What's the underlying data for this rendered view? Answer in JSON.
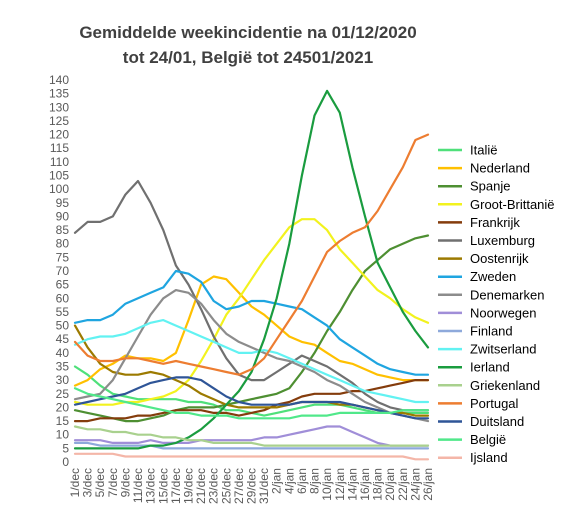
{
  "chart_data": {
    "type": "line",
    "title": [
      "Gemiddelde weekincidentie  na 01/12/2020",
      "tot 24/01, België tot 24501/2021"
    ],
    "xlabel": "",
    "ylabel": "",
    "ylim": [
      0,
      140
    ],
    "ytick_step": 5,
    "grid": false,
    "legend_position": "right",
    "x": [
      "1/dec",
      "3/dec",
      "5/dec",
      "7/dec",
      "9/dec",
      "11/dec",
      "13/dec",
      "15/dec",
      "17/dec",
      "19/dec",
      "21/dec",
      "23/dec",
      "25/dec",
      "27/dec",
      "29/dec",
      "31/dec",
      "2/jan",
      "4/jan",
      "6/jan",
      "8/jan",
      "10/jan",
      "12/jan",
      "14/jan",
      "16/jan",
      "18/jan",
      "20/jan",
      "22/jan",
      "24/jan",
      "26/jan"
    ],
    "series": [
      {
        "name": "Italië",
        "color": "#4fe07a",
        "values": [
          35,
          32,
          28,
          25,
          24,
          23,
          23,
          23,
          23,
          22,
          22,
          21,
          19,
          19,
          18,
          17,
          18,
          19,
          20,
          21,
          21,
          21,
          20,
          19,
          18,
          18,
          18,
          18,
          18
        ]
      },
      {
        "name": "Nederland",
        "color": "#ffc000",
        "values": [
          28,
          30,
          34,
          36,
          39,
          38,
          38,
          37,
          40,
          52,
          65,
          68,
          67,
          62,
          57,
          54,
          50,
          46,
          44,
          43,
          40,
          37,
          36,
          34,
          32,
          31,
          30,
          30,
          30
        ]
      },
      {
        "name": "Spanje",
        "color": "#4e8f32",
        "values": [
          19,
          18,
          17,
          16,
          15,
          15,
          16,
          17,
          19,
          20,
          20,
          20,
          21,
          22,
          23,
          24,
          25,
          27,
          33,
          40,
          48,
          55,
          63,
          70,
          74,
          78,
          80,
          82,
          83
        ]
      },
      {
        "name": "Groot-Brittanië",
        "color": "#f2f21e",
        "values": [
          22,
          21,
          21,
          21,
          22,
          22,
          23,
          24,
          26,
          30,
          37,
          45,
          54,
          60,
          67,
          74,
          80,
          86,
          89,
          89,
          85,
          78,
          73,
          68,
          63,
          60,
          56,
          53,
          51
        ]
      },
      {
        "name": "Frankrijk",
        "color": "#843c0c",
        "values": [
          15,
          15,
          16,
          16,
          16,
          17,
          17,
          18,
          19,
          19,
          19,
          18,
          18,
          17,
          18,
          19,
          21,
          22,
          24,
          25,
          25,
          25,
          26,
          26,
          27,
          28,
          29,
          30,
          30
        ]
      },
      {
        "name": "Luxemburg",
        "color": "#707070",
        "values": [
          84,
          88,
          88,
          90,
          98,
          103,
          95,
          85,
          72,
          65,
          56,
          46,
          38,
          32,
          30,
          30,
          33,
          36,
          39,
          37,
          35,
          32,
          29,
          25,
          22,
          20,
          19,
          19,
          19
        ]
      },
      {
        "name": "Oostenrijk",
        "color": "#9c7a00",
        "values": [
          50,
          42,
          36,
          33,
          32,
          32,
          33,
          32,
          30,
          28,
          25,
          23,
          21,
          20,
          20,
          20,
          20,
          21,
          22,
          22,
          22,
          21,
          21,
          20,
          19,
          18,
          18,
          17,
          17
        ]
      },
      {
        "name": "Zweden",
        "color": "#1fa5e0",
        "values": [
          51,
          52,
          52,
          54,
          58,
          60,
          62,
          64,
          70,
          69,
          66,
          59,
          56,
          57,
          59,
          59,
          58,
          57,
          56,
          53,
          50,
          45,
          42,
          39,
          36,
          34,
          33,
          32,
          32
        ]
      },
      {
        "name": "Denemarken",
        "color": "#8c8c8c",
        "values": [
          23,
          24,
          25,
          30,
          38,
          46,
          54,
          60,
          63,
          62,
          58,
          52,
          47,
          44,
          42,
          40,
          38,
          37,
          35,
          33,
          30,
          28,
          25,
          22,
          20,
          18,
          17,
          16,
          15
        ]
      },
      {
        "name": "Noorwegen",
        "color": "#a08ed8",
        "values": [
          8,
          8,
          8,
          7,
          7,
          7,
          8,
          7,
          7,
          7,
          8,
          8,
          8,
          8,
          8,
          9,
          9,
          10,
          11,
          12,
          13,
          13,
          11,
          9,
          7,
          6,
          6,
          6,
          6
        ]
      },
      {
        "name": "Finland",
        "color": "#8ea9db",
        "values": [
          7,
          7,
          6,
          6,
          6,
          6,
          6,
          5,
          5,
          5,
          5,
          5,
          5,
          5,
          5,
          5,
          5,
          5,
          5,
          5,
          5,
          5,
          5,
          5,
          5,
          5,
          5,
          5,
          5
        ]
      },
      {
        "name": "Zwitserland",
        "color": "#62f2f2",
        "values": [
          43,
          45,
          46,
          46,
          47,
          49,
          51,
          52,
          50,
          48,
          46,
          44,
          42,
          40,
          40,
          41,
          40,
          38,
          36,
          34,
          32,
          30,
          28,
          26,
          25,
          24,
          23,
          22,
          22
        ]
      },
      {
        "name": "Ierland",
        "color": "#1a9c3f",
        "values": [
          5,
          5,
          5,
          5,
          5,
          5,
          6,
          6,
          7,
          9,
          12,
          16,
          21,
          26,
          33,
          45,
          60,
          80,
          105,
          127,
          136,
          128,
          108,
          90,
          73,
          64,
          55,
          48,
          42
        ]
      },
      {
        "name": "Griekenland",
        "color": "#a9d18e",
        "values": [
          13,
          12,
          12,
          11,
          11,
          10,
          10,
          9,
          9,
          8,
          8,
          7,
          7,
          7,
          7,
          6,
          6,
          6,
          6,
          6,
          6,
          6,
          6,
          6,
          6,
          6,
          6,
          6,
          6
        ]
      },
      {
        "name": "Portugal",
        "color": "#ed7d31",
        "values": [
          44,
          39,
          37,
          37,
          38,
          38,
          37,
          36,
          37,
          36,
          35,
          34,
          33,
          32,
          34,
          38,
          45,
          52,
          59,
          68,
          77,
          81,
          84,
          86,
          92,
          100,
          108,
          118,
          120
        ]
      },
      {
        "name": "Duitsland",
        "color": "#2f5597",
        "values": [
          21,
          22,
          23,
          24,
          25,
          27,
          29,
          30,
          31,
          31,
          30,
          27,
          24,
          22,
          21,
          21,
          21,
          21,
          22,
          22,
          22,
          22,
          21,
          20,
          19,
          18,
          17,
          16,
          16
        ]
      },
      {
        "name": "België",
        "color": "#50e88a",
        "values": [
          27,
          25,
          24,
          23,
          22,
          21,
          20,
          19,
          18,
          18,
          17,
          17,
          17,
          16,
          16,
          16,
          16,
          16,
          17,
          17,
          17,
          18,
          18,
          18,
          18,
          18,
          19,
          19,
          19
        ]
      },
      {
        "name": "Ijsland",
        "color": "#f4b6a8",
        "values": [
          3,
          3,
          3,
          3,
          2,
          2,
          2,
          2,
          2,
          2,
          2,
          2,
          2,
          2,
          2,
          2,
          2,
          2,
          2,
          2,
          2,
          2,
          2,
          2,
          2,
          2,
          2,
          1,
          1
        ]
      }
    ]
  }
}
